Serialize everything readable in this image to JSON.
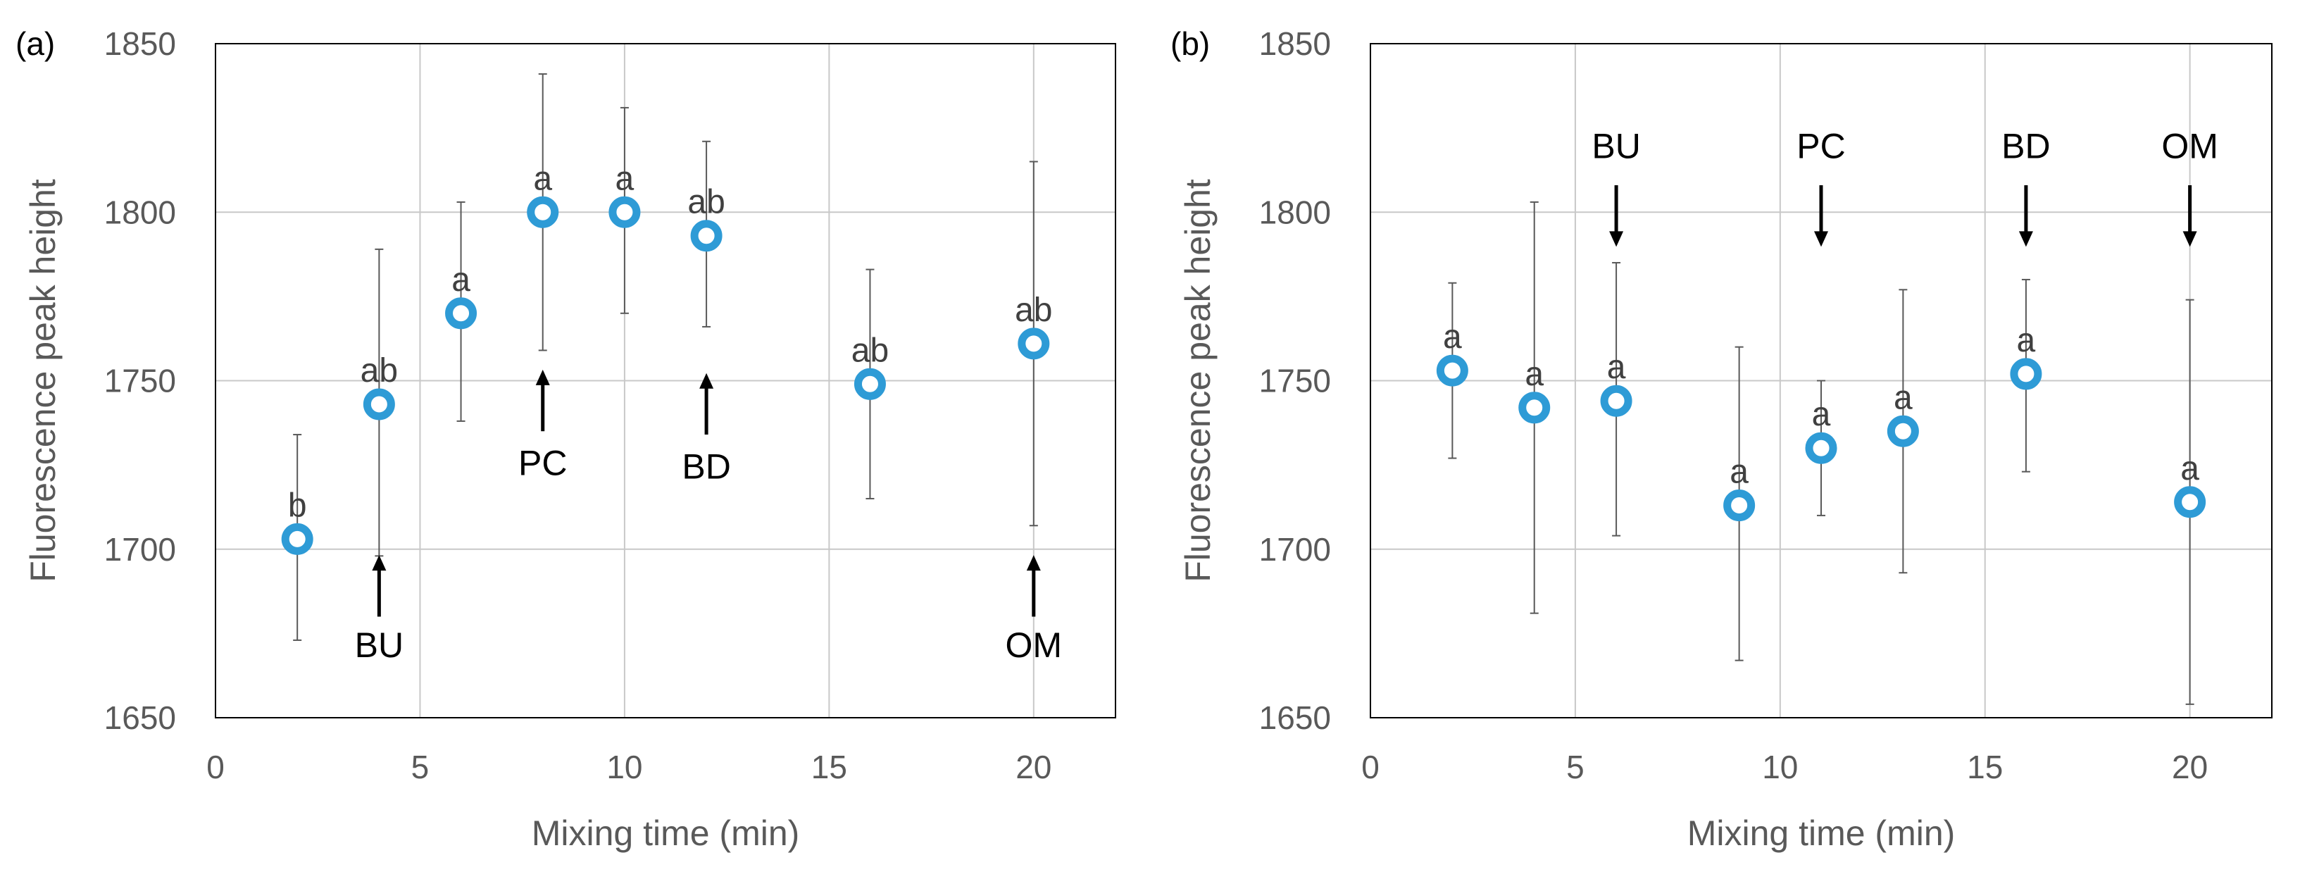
{
  "colors": {
    "marker": "#2e9bd6",
    "marker_center": "#ffffff",
    "errorbar": "#595959",
    "grid": "#c8c8c8",
    "axis": "#000000",
    "axis_text": "#595959",
    "annotation": "#000000",
    "sig_letter": "#404040"
  },
  "chart_data": [
    {
      "type": "scatter",
      "panel_label": "(a)",
      "xlabel": "Mixing time (min)",
      "ylabel": "Fluorescence peak height",
      "xlim": [
        0,
        22
      ],
      "ylim": [
        1650,
        1850
      ],
      "xticks": [
        0,
        5,
        10,
        15,
        20
      ],
      "yticks": [
        1650,
        1700,
        1750,
        1800,
        1850
      ],
      "grid": true,
      "series": [
        {
          "name": "Fluorescence peak height",
          "x": [
            2,
            4,
            6,
            8,
            10,
            12,
            16,
            20
          ],
          "y": [
            1703,
            1743,
            1770,
            1800,
            1800,
            1793,
            1749,
            1761
          ],
          "err_low": [
            1673,
            1698,
            1738,
            1759,
            1770,
            1766,
            1715,
            1707
          ],
          "err_high": [
            1734,
            1789,
            1803,
            1841,
            1831,
            1821,
            1783,
            1815
          ],
          "letters": [
            "b",
            "ab",
            "a",
            "a",
            "a",
            "ab",
            "ab",
            "ab"
          ]
        }
      ],
      "annotations": [
        {
          "text": "BU",
          "x": 4,
          "direction": "up",
          "from": 1680,
          "to": 1697,
          "label_y": 1668
        },
        {
          "text": "PC",
          "x": 8,
          "direction": "up",
          "from": 1735,
          "to": 1752,
          "label_y": 1722
        },
        {
          "text": "BD",
          "x": 12,
          "direction": "up",
          "from": 1734,
          "to": 1751,
          "label_y": 1721
        },
        {
          "text": "OM",
          "x": 20,
          "direction": "up",
          "from": 1680,
          "to": 1697,
          "label_y": 1668
        }
      ]
    },
    {
      "type": "scatter",
      "panel_label": "(b)",
      "xlabel": "Mixing time (min)",
      "ylabel": "Fluorescence peak height",
      "xlim": [
        0,
        22
      ],
      "ylim": [
        1650,
        1850
      ],
      "xticks": [
        0,
        5,
        10,
        15,
        20
      ],
      "yticks": [
        1650,
        1700,
        1750,
        1800,
        1850
      ],
      "grid": true,
      "series": [
        {
          "name": "Fluorescence peak height",
          "x": [
            2,
            4,
            6,
            9,
            11,
            13,
            16,
            20
          ],
          "y": [
            1753,
            1742,
            1744,
            1713,
            1730,
            1735,
            1752,
            1714
          ],
          "err_low": [
            1727,
            1681,
            1704,
            1667,
            1710,
            1693,
            1723,
            1654
          ],
          "err_high": [
            1779,
            1803,
            1785,
            1760,
            1750,
            1777,
            1780,
            1774
          ],
          "letters": [
            "a",
            "a",
            "a",
            "a",
            "a",
            "a",
            "a",
            "a"
          ]
        }
      ],
      "annotations": [
        {
          "text": "BU",
          "x": 6,
          "direction": "down",
          "from": 1808,
          "to": 1791,
          "label_y": 1816
        },
        {
          "text": "PC",
          "x": 11,
          "direction": "down",
          "from": 1808,
          "to": 1791,
          "label_y": 1816
        },
        {
          "text": "BD",
          "x": 16,
          "direction": "down",
          "from": 1808,
          "to": 1791,
          "label_y": 1816
        },
        {
          "text": "OM",
          "x": 20,
          "direction": "down",
          "from": 1808,
          "to": 1791,
          "label_y": 1816
        }
      ]
    }
  ]
}
